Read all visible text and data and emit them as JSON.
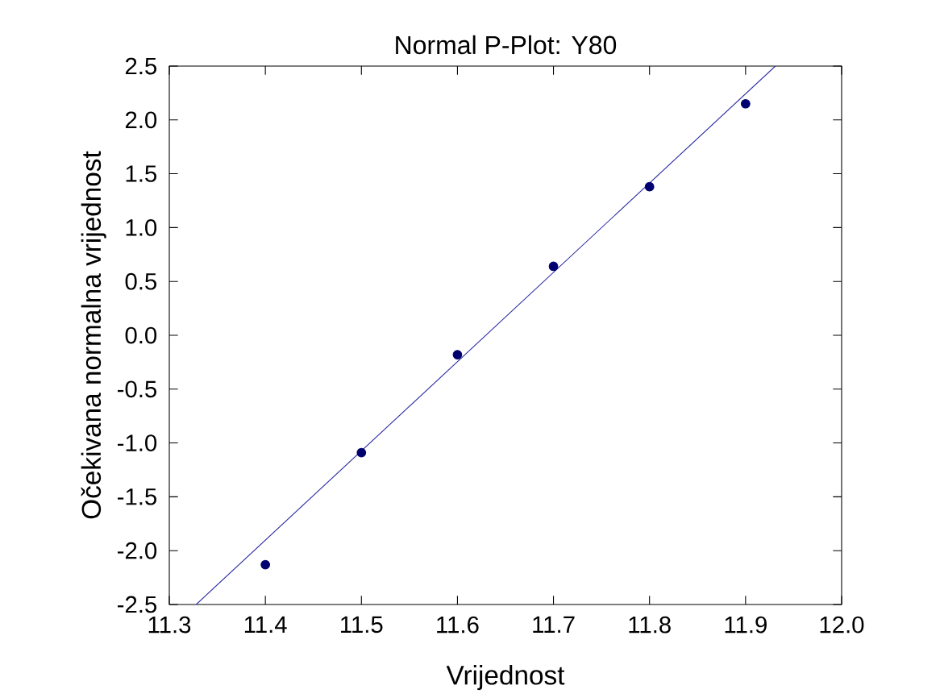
{
  "chart_data": {
    "type": "scatter",
    "title": "Normal P-Plot: Y80",
    "xlabel": "Vrijednost",
    "ylabel": "Očekivana normalna vrijednost",
    "grid": false,
    "xlim": [
      11.3,
      12.0
    ],
    "ylim": [
      -2.5,
      2.5
    ],
    "xticks": [
      11.3,
      11.4,
      11.5,
      11.6,
      11.7,
      11.8,
      11.9,
      {
        "value": 12.0,
        "label": "12.0"
      }
    ],
    "yticks": [
      -2.5,
      {
        "value": -2.0,
        "label": "-2.0"
      },
      -1.5,
      {
        "value": -1.0,
        "label": "-1.0"
      },
      -0.5,
      {
        "value": 0.0,
        "label": "0.0"
      },
      0.5,
      {
        "value": 1.0,
        "label": "1.0"
      },
      1.5,
      {
        "value": 2.0,
        "label": "2.0"
      },
      2.5
    ],
    "series": [
      {
        "marker": "circle",
        "color": "#00006e",
        "x": [
          11.4,
          11.5,
          11.6,
          11.7,
          11.8,
          11.9
        ],
        "values": [
          -2.13,
          -1.09,
          -0.18,
          0.64,
          1.38,
          2.15
        ]
      },
      {
        "type": "line",
        "marker": "none",
        "color": "#2626a0",
        "x": [
          11.328,
          11.931
        ],
        "values": [
          -2.5,
          2.5
        ]
      }
    ]
  }
}
